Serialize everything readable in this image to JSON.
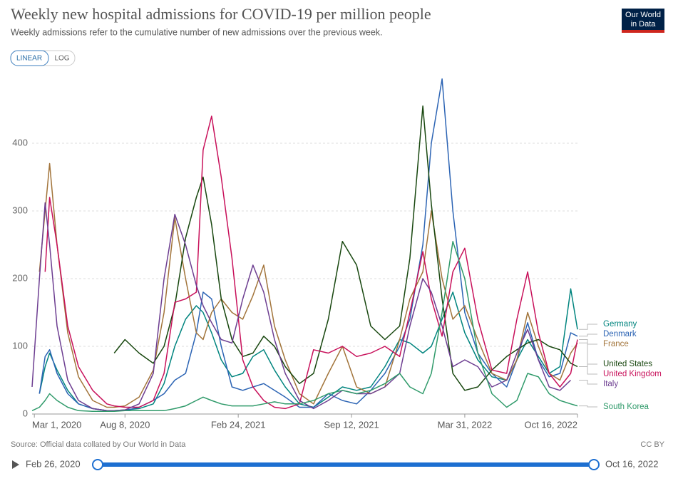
{
  "chart_data": {
    "type": "line",
    "title": "Weekly new hospital admissions for COVID-19 per million people",
    "subtitle": "Weekly admissions refer to the cumulative number of new admissions over the previous week.",
    "x": [
      "2020-02-26",
      "2020-03-10",
      "2020-03-20",
      "2020-03-28",
      "2020-04-10",
      "2020-04-29",
      "2020-05-18",
      "2020-06-12",
      "2020-07-07",
      "2020-07-20",
      "2020-08-08",
      "2020-09-02",
      "2020-09-27",
      "2020-10-16",
      "2020-11-04",
      "2020-11-23",
      "2020-12-12",
      "2020-12-24",
      "2021-01-08",
      "2021-01-25",
      "2021-02-13",
      "2021-03-04",
      "2021-03-22",
      "2021-04-10",
      "2021-04-29",
      "2021-05-18",
      "2021-06-12",
      "2021-07-07",
      "2021-08-02",
      "2021-08-27",
      "2021-09-21",
      "2021-10-16",
      "2021-11-10",
      "2021-12-06",
      "2021-12-24",
      "2022-01-16",
      "2022-01-31",
      "2022-02-19",
      "2022-03-10",
      "2022-03-31",
      "2022-04-23",
      "2022-05-18",
      "2022-06-13",
      "2022-07-01",
      "2022-07-20",
      "2022-08-08",
      "2022-08-27",
      "2022-09-15",
      "2022-10-04",
      "2022-10-16"
    ],
    "series": [
      {
        "name": "Germany",
        "color": "#00847e",
        "values": [
          null,
          30,
          70,
          90,
          65,
          35,
          15,
          8,
          5,
          5,
          6,
          8,
          15,
          45,
          100,
          140,
          160,
          150,
          120,
          80,
          55,
          60,
          85,
          95,
          65,
          40,
          15,
          10,
          25,
          40,
          35,
          40,
          70,
          110,
          105,
          90,
          100,
          140,
          180,
          120,
          80,
          55,
          50,
          80,
          110,
          85,
          60,
          70,
          185,
          125
        ]
      },
      {
        "name": "Denmark",
        "color": "#2c64b4",
        "values": [
          null,
          30,
          85,
          95,
          60,
          30,
          15,
          8,
          5,
          5,
          5,
          10,
          20,
          30,
          50,
          60,
          120,
          180,
          170,
          100,
          40,
          35,
          40,
          45,
          35,
          25,
          10,
          10,
          30,
          20,
          15,
          35,
          60,
          100,
          140,
          250,
          400,
          495,
          300,
          150,
          90,
          60,
          40,
          80,
          135,
          80,
          55,
          60,
          120,
          115
        ]
      },
      {
        "name": "France",
        "color": "#a2743a",
        "values": [
          null,
          210,
          300,
          370,
          250,
          120,
          55,
          20,
          10,
          10,
          12,
          25,
          65,
          150,
          290,
          200,
          120,
          110,
          150,
          170,
          150,
          140,
          175,
          220,
          130,
          80,
          30,
          15,
          60,
          100,
          40,
          30,
          40,
          110,
          170,
          210,
          300,
          200,
          140,
          160,
          110,
          60,
          50,
          80,
          150,
          100,
          60,
          50,
          90,
          105
        ]
      },
      {
        "name": "United States",
        "color": "#18470f",
        "values": [
          null,
          null,
          null,
          null,
          null,
          null,
          null,
          null,
          null,
          90,
          110,
          90,
          75,
          100,
          160,
          260,
          320,
          350,
          280,
          170,
          110,
          85,
          90,
          115,
          100,
          70,
          45,
          60,
          140,
          255,
          220,
          130,
          110,
          130,
          230,
          455,
          310,
          170,
          60,
          35,
          40,
          65,
          85,
          95,
          105,
          110,
          100,
          95,
          75,
          70
        ]
      },
      {
        "name": "United Kingdom",
        "color": "#c8105a",
        "values": [
          null,
          null,
          210,
          320,
          250,
          130,
          70,
          35,
          15,
          12,
          10,
          10,
          20,
          60,
          165,
          170,
          180,
          390,
          440,
          350,
          230,
          80,
          40,
          20,
          10,
          8,
          15,
          95,
          90,
          100,
          85,
          90,
          100,
          85,
          150,
          240,
          170,
          115,
          210,
          245,
          140,
          65,
          60,
          140,
          210,
          120,
          60,
          40,
          60,
          110
        ]
      },
      {
        "name": "Italy",
        "color": "#6d3e91",
        "values": [
          40,
          200,
          312,
          250,
          130,
          50,
          20,
          8,
          5,
          5,
          6,
          15,
          60,
          200,
          295,
          250,
          190,
          160,
          135,
          110,
          105,
          170,
          220,
          180,
          110,
          60,
          20,
          8,
          20,
          35,
          30,
          30,
          40,
          60,
          130,
          200,
          180,
          130,
          70,
          80,
          70,
          40,
          50,
          90,
          125,
          80,
          40,
          35,
          50,
          null
        ]
      },
      {
        "name": "South Korea",
        "color": "#2f9a6a",
        "values": [
          5,
          10,
          20,
          30,
          20,
          10,
          5,
          4,
          4,
          4,
          5,
          5,
          5,
          5,
          8,
          12,
          20,
          25,
          20,
          15,
          12,
          12,
          12,
          15,
          18,
          15,
          15,
          20,
          30,
          35,
          30,
          35,
          45,
          60,
          40,
          30,
          60,
          150,
          255,
          200,
          90,
          30,
          10,
          20,
          60,
          55,
          30,
          20,
          15,
          12
        ]
      }
    ],
    "xlim": [
      "2020-02-26",
      "2022-10-16"
    ],
    "xticks": [
      {
        "value": "2020-03-01",
        "label": "Mar 1, 2020"
      },
      {
        "value": "2020-08-08",
        "label": "Aug 8, 2020"
      },
      {
        "value": "2021-02-24",
        "label": "Feb 24, 2021"
      },
      {
        "value": "2021-09-12",
        "label": "Sep 12, 2021"
      },
      {
        "value": "2022-03-31",
        "label": "Mar 31, 2022"
      },
      {
        "value": "2022-10-16",
        "label": "Oct 16, 2022"
      }
    ],
    "ylim": [
      0,
      500
    ],
    "yticks": [
      0,
      100,
      200,
      300,
      400
    ],
    "grid": true
  },
  "logo": {
    "line1": "Our World",
    "line2": "in Data"
  },
  "controls": {
    "linear": "LINEAR",
    "log": "LOG"
  },
  "footer": {
    "source": "Source: Official data collated by Our World in Data",
    "license": "CC BY"
  },
  "timeline": {
    "start": "Feb 26, 2020",
    "end": "Oct 16, 2022"
  }
}
